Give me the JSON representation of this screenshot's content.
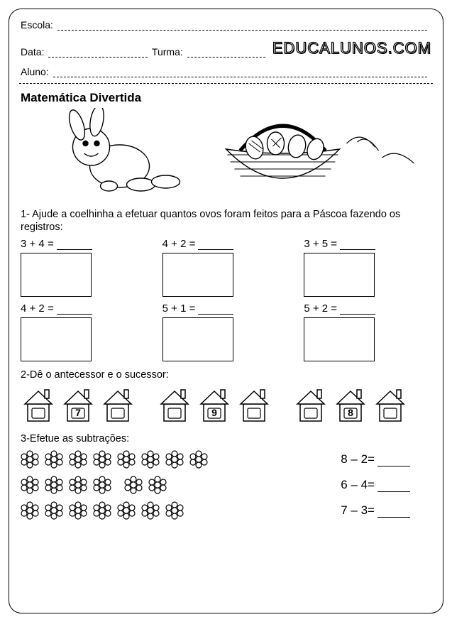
{
  "header": {
    "escola_label": "Escola:",
    "data_label": "Data:",
    "turma_label": "Turma:",
    "aluno_label": "Aluno:",
    "brand": "EDUCALUNOS.COM"
  },
  "title": "Matemática Divertida",
  "q1": {
    "prompt": "1- Ajude a coelhinha a efetuar quantos ovos foram feitos para a Páscoa fazendo os registros:",
    "equations": [
      "3 + 4 =",
      "4 + 2 =",
      "3 + 5 =",
      "4 + 2 =",
      "5 + 1 =",
      "5 + 2 ="
    ]
  },
  "q2": {
    "prompt": "2-Dê o antecessor e o sucessor:",
    "groups": [
      {
        "values": [
          "",
          "7",
          ""
        ]
      },
      {
        "values": [
          "",
          "9",
          ""
        ]
      },
      {
        "values": [
          "",
          "8",
          ""
        ]
      }
    ]
  },
  "q3": {
    "prompt": "3-Efetue as subtrações:",
    "rows": [
      {
        "flower_groups": [
          8
        ],
        "equation": "8 – 2="
      },
      {
        "flower_groups": [
          4,
          2
        ],
        "equation": "6 – 4="
      },
      {
        "flower_groups": [
          7
        ],
        "equation": "7 – 3="
      }
    ]
  },
  "colors": {
    "stroke": "#000000",
    "background": "#ffffff"
  }
}
